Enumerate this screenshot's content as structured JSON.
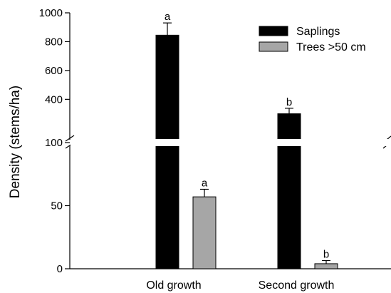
{
  "chart_data": {
    "type": "bar",
    "title": "",
    "xlabel": "",
    "ylabel": "Density (stems/ha)",
    "categories": [
      "Old growth",
      "Second growth"
    ],
    "series": [
      {
        "name": "Saplings",
        "color": "#000000",
        "values": [
          845,
          300
        ],
        "errors": [
          85,
          38
        ],
        "significance": [
          "a",
          "b"
        ]
      },
      {
        "name": "Trees >50 cm",
        "color": "#a6a6a6",
        "values": [
          57,
          4
        ],
        "errors": [
          6,
          2.5
        ],
        "significance": [
          "a",
          "b"
        ]
      }
    ],
    "y_axis": {
      "broken": true,
      "lower_segment": {
        "range": [
          0,
          100
        ],
        "ticks": [
          "0",
          "50",
          "100"
        ]
      },
      "upper_segment": {
        "range": [
          100,
          1000
        ],
        "ticks": [
          "400",
          "600",
          "800",
          "1000"
        ]
      }
    },
    "legend": {
      "placement": "top-right",
      "items": [
        "Saplings",
        "Trees >50 cm"
      ]
    },
    "grid": false
  }
}
